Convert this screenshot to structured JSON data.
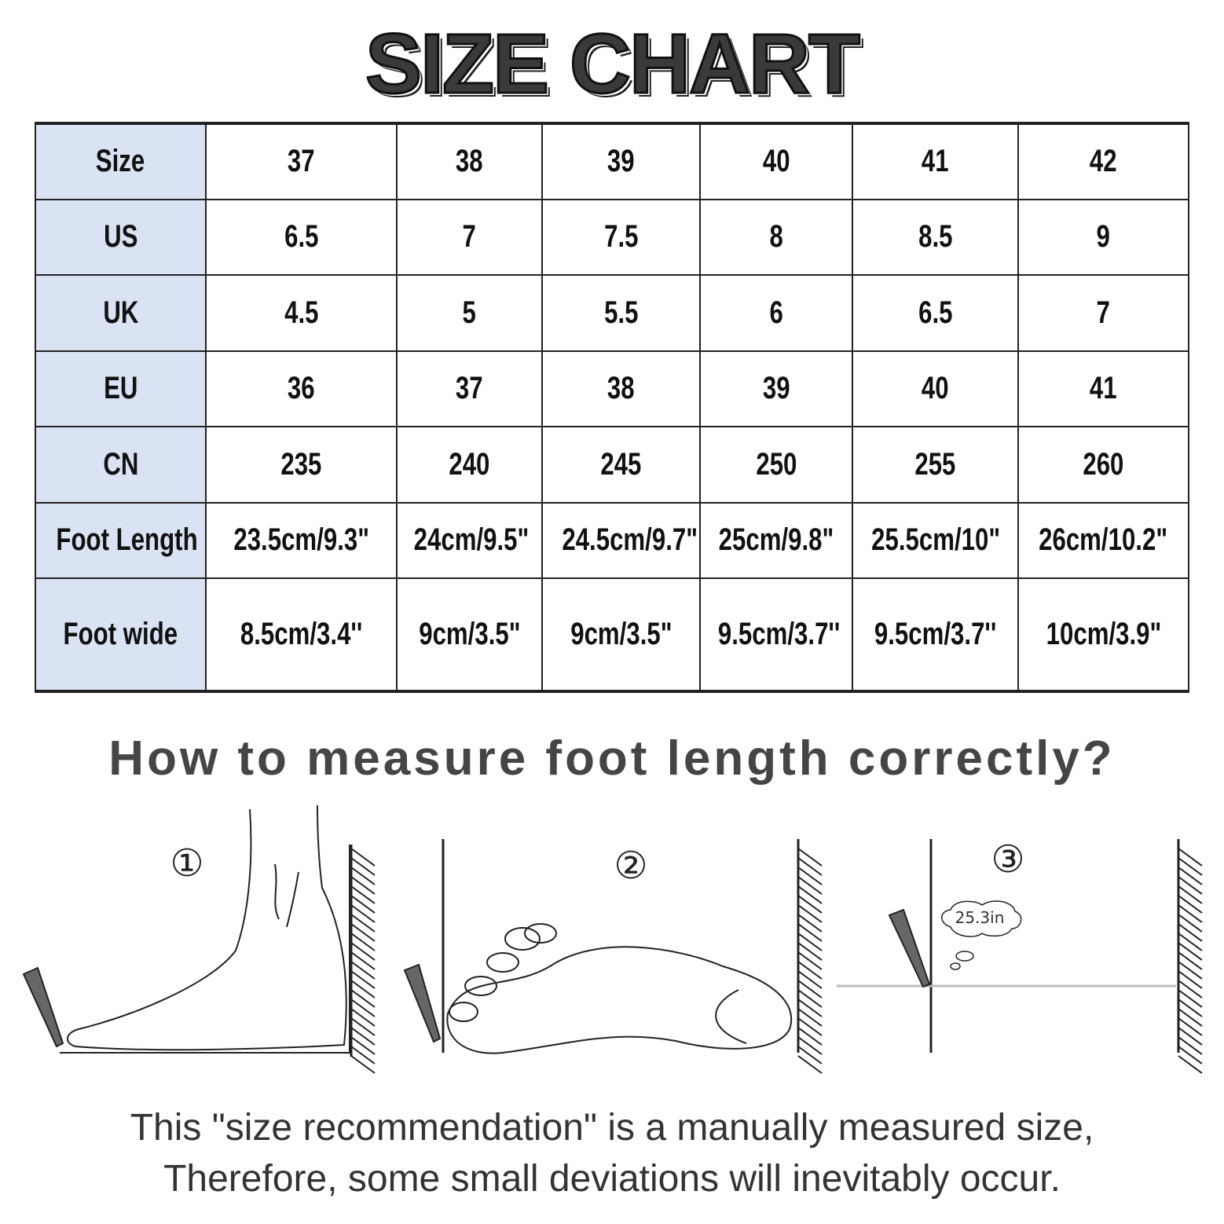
{
  "title": "SIZE CHART",
  "table": {
    "rows": [
      {
        "label": "Size",
        "values": [
          "37",
          "38",
          "39",
          "40",
          "41",
          "42"
        ]
      },
      {
        "label": "US",
        "values": [
          "6.5",
          "7",
          "7.5",
          "8",
          "8.5",
          "9"
        ]
      },
      {
        "label": "UK",
        "values": [
          "4.5",
          "5",
          "5.5",
          "6",
          "6.5",
          "7"
        ]
      },
      {
        "label": "EU",
        "values": [
          "36",
          "37",
          "38",
          "39",
          "40",
          "41"
        ]
      },
      {
        "label": "CN",
        "values": [
          "235",
          "240",
          "245",
          "250",
          "255",
          "260"
        ]
      },
      {
        "label": "Foot Length",
        "values": [
          "23.5cm/9.3\"",
          "24cm/9.5\"",
          "24.5cm/9.7\"",
          "25cm/9.8\"",
          "25.5cm/10\"",
          "26cm/10.2\""
        ]
      },
      {
        "label": "Foot wide",
        "values": [
          "8.5cm/3.4''",
          "9cm/3.5\"",
          "9cm/3.5\"",
          "9.5cm/3.7''",
          "9.5cm/3.7''",
          "10cm/3.9\""
        ]
      }
    ],
    "header_color": "#dae3f3"
  },
  "howto_heading": "How to measure foot length correctly?",
  "steps": {
    "step1": "①",
    "step2": "②",
    "step3": "③",
    "measurement": "25.3in"
  },
  "note": {
    "line1": "This \"size recommendation\" is a manually measured size,",
    "line2": "Therefore, some small deviations will inevitably occur."
  }
}
